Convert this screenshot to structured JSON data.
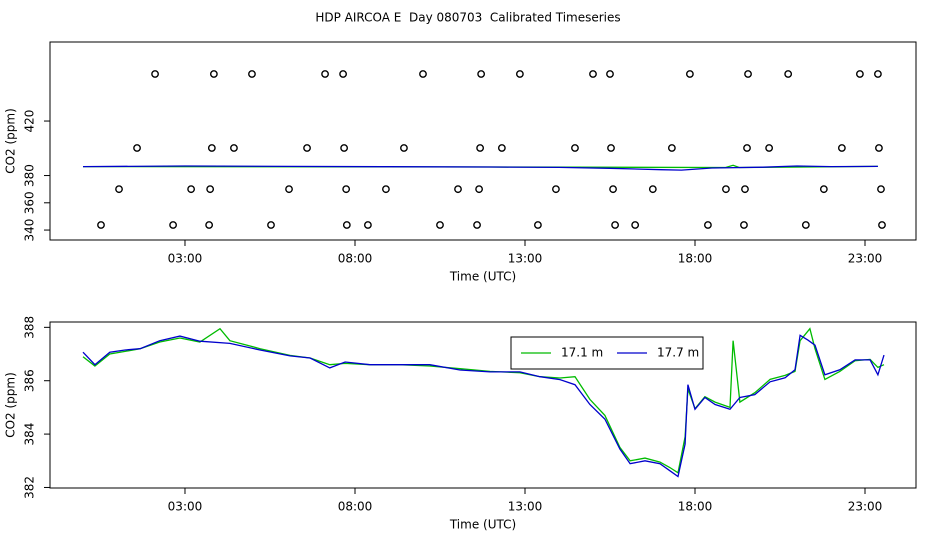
{
  "chart_data": [
    {
      "type": "scatter",
      "title": "HDP AIRCOA E  Day 080703  Calibrated Timeseries",
      "xlabel": "Time (UTC)",
      "ylabel": "CO2 (ppm)",
      "xlim": [
        -0.97,
        24.5
      ],
      "ylim": [
        332.7,
        478
      ],
      "xticks": [
        {
          "value": 3,
          "label": "03:00"
        },
        {
          "value": 8,
          "label": "08:00"
        },
        {
          "value": 13,
          "label": "13:00"
        },
        {
          "value": 18,
          "label": "18:00"
        },
        {
          "value": 23,
          "label": "23:00"
        }
      ],
      "yticks": [
        340,
        360,
        380,
        420
      ],
      "series": [
        {
          "color": "#000000",
          "marker": "circle",
          "x": [
            2.12,
            3.85,
            4.97,
            7.12,
            7.65,
            10.0,
            11.71,
            12.85,
            15.0,
            15.5,
            17.85,
            19.56,
            20.74,
            22.85,
            23.38,
            1.59,
            3.79,
            4.44,
            6.59,
            7.68,
            9.44,
            11.68,
            12.32,
            14.47,
            15.53,
            17.32,
            19.53,
            20.18,
            22.32,
            23.41,
            1.06,
            3.18,
            3.74,
            6.06,
            7.74,
            8.91,
            11.03,
            11.65,
            13.91,
            15.59,
            16.76,
            18.91,
            19.47,
            21.79,
            23.47,
            0.53,
            2.65,
            3.71,
            5.53,
            7.76,
            8.38,
            10.5,
            11.59,
            13.38,
            15.65,
            16.24,
            18.38,
            19.44,
            21.26,
            23.5
          ],
          "values": [
            454.5,
            454.5,
            454.5,
            454.5,
            454.5,
            454.5,
            454.5,
            454.5,
            454.5,
            454.5,
            454.5,
            454.5,
            454.5,
            454.5,
            454.5,
            400.2,
            400.2,
            400.2,
            400.2,
            400.2,
            400.2,
            400.2,
            400.2,
            400.2,
            400.2,
            400.2,
            400.2,
            400.2,
            400.2,
            400.2,
            370,
            370,
            370,
            370,
            370,
            370,
            370,
            370,
            370,
            370,
            370,
            370,
            370,
            370,
            370,
            343.7,
            343.7,
            343.7,
            343.7,
            343.7,
            343.7,
            343.7,
            343.7,
            343.7,
            343.7,
            343.7,
            343.7,
            343.7,
            343.7,
            343.7
          ]
        },
        {
          "color": "#00bb00",
          "marker": "line",
          "x": [
            0,
            12,
            18.9,
            19.12,
            19.3,
            23.38
          ],
          "values": [
            386.6,
            386.3,
            385.9,
            387.5,
            385.9,
            386.7
          ]
        },
        {
          "color": "#0000cc",
          "marker": "line",
          "x": [
            0,
            3,
            6,
            9,
            12,
            14,
            15.5,
            17,
            17.6,
            18.5,
            20,
            21,
            22,
            23.38
          ],
          "values": [
            386.6,
            387,
            386.7,
            386.5,
            386.3,
            386,
            385.3,
            384.3,
            384,
            385.5,
            386.1,
            387,
            386.6,
            386.7
          ]
        }
      ]
    },
    {
      "type": "line",
      "xlabel": "Time (UTC)",
      "ylabel": "CO2 (ppm)",
      "xlim": [
        -0.97,
        24.5
      ],
      "ylim": [
        381.98,
        388.2
      ],
      "xticks": [
        {
          "value": 3,
          "label": "03:00"
        },
        {
          "value": 8,
          "label": "08:00"
        },
        {
          "value": 13,
          "label": "13:00"
        },
        {
          "value": 18,
          "label": "18:00"
        },
        {
          "value": 23,
          "label": "23:00"
        }
      ],
      "yticks": [
        382,
        384,
        386,
        388
      ],
      "legend": "top",
      "series": [
        {
          "name": "17.1 m",
          "color": "#00bb00",
          "x": [
            0,
            0.35,
            0.79,
            1.24,
            1.68,
            2.26,
            2.85,
            3.44,
            4.03,
            4.32,
            5.21,
            6.09,
            6.68,
            7.26,
            7.71,
            8.44,
            9.32,
            10.2,
            11.09,
            11.97,
            12.85,
            13.44,
            14.03,
            14.47,
            14.91,
            15.35,
            15.79,
            16.09,
            16.53,
            16.97,
            17.26,
            17.5,
            17.71,
            17.79,
            18.0,
            18.29,
            18.59,
            19.03,
            19.12,
            19.32,
            19.76,
            20.21,
            20.65,
            20.94,
            21.09,
            21.38,
            21.53,
            21.82,
            22.26,
            22.71,
            23.15,
            23.38,
            23.56
          ],
          "values": [
            386.9,
            386.55,
            387.0,
            387.1,
            387.2,
            387.45,
            387.6,
            387.45,
            387.95,
            387.5,
            387.2,
            386.95,
            386.85,
            386.6,
            386.65,
            386.6,
            386.6,
            386.55,
            386.45,
            386.35,
            386.3,
            386.15,
            386.1,
            386.15,
            385.3,
            384.7,
            383.5,
            383.0,
            383.1,
            382.95,
            382.75,
            382.55,
            383.9,
            385.7,
            384.95,
            385.4,
            385.2,
            385.0,
            387.5,
            385.2,
            385.55,
            386.05,
            386.2,
            386.35,
            387.5,
            387.95,
            387.2,
            386.05,
            386.35,
            386.75,
            386.8,
            386.5,
            386.6
          ]
        },
        {
          "name": "17.7 m",
          "color": "#0000cc",
          "x": [
            0,
            0.35,
            0.79,
            1.24,
            1.68,
            2.26,
            2.85,
            3.44,
            4.32,
            5.21,
            6.09,
            6.68,
            7.26,
            7.71,
            8.44,
            9.32,
            10.2,
            11.09,
            11.97,
            12.85,
            13.44,
            14.03,
            14.47,
            14.91,
            15.35,
            15.79,
            16.09,
            16.53,
            16.97,
            17.26,
            17.5,
            17.71,
            17.79,
            18.0,
            18.29,
            18.59,
            19.03,
            19.32,
            19.76,
            20.21,
            20.65,
            20.94,
            21.09,
            21.32,
            21.53,
            21.82,
            22.26,
            22.71,
            23.15,
            23.38,
            23.56
          ],
          "values": [
            387.07,
            386.6,
            387.07,
            387.15,
            387.2,
            387.5,
            387.67,
            387.48,
            387.4,
            387.15,
            386.93,
            386.85,
            386.48,
            386.7,
            386.6,
            386.6,
            386.6,
            386.4,
            386.33,
            386.33,
            386.15,
            386.04,
            385.85,
            385.11,
            384.56,
            383.44,
            382.89,
            383.0,
            382.89,
            382.63,
            382.41,
            383.63,
            385.85,
            384.93,
            385.37,
            385.11,
            384.93,
            385.37,
            385.48,
            385.96,
            386.11,
            386.41,
            387.7,
            387.52,
            387.33,
            386.22,
            386.41,
            386.78,
            386.78,
            386.22,
            386.96
          ]
        }
      ]
    }
  ]
}
